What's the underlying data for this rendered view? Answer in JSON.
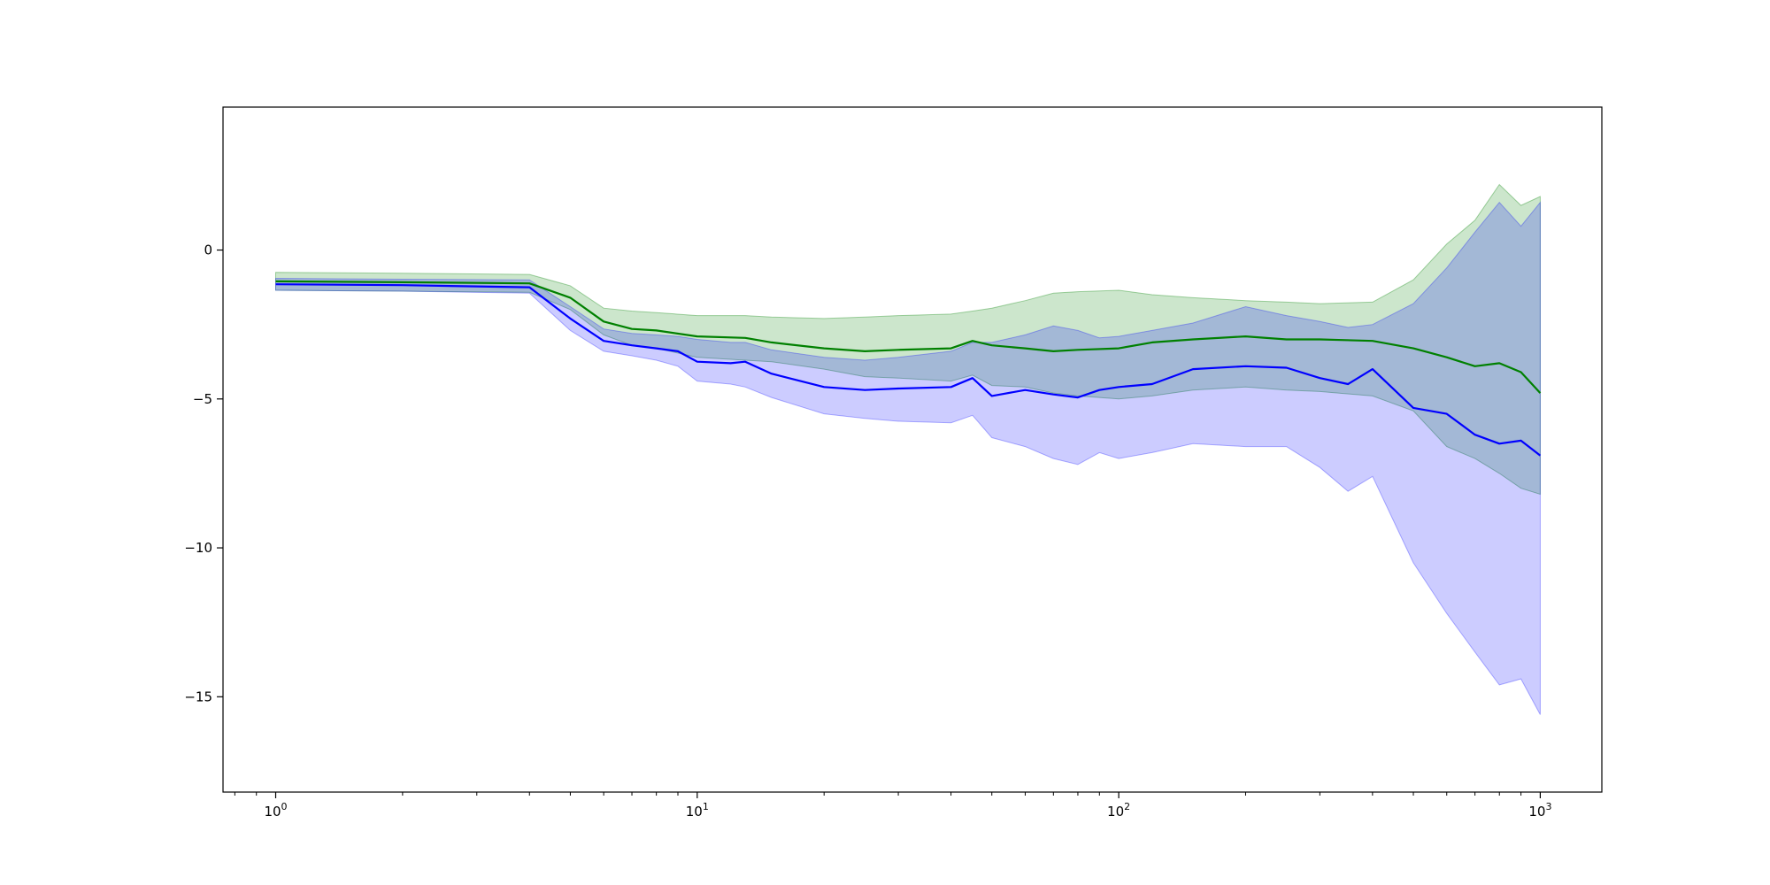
{
  "chart_data": {
    "type": "line",
    "xscale": "log",
    "xlim": [
      0.75,
      1400
    ],
    "ylim": [
      -18.2,
      4.8
    ],
    "x_ticks": [
      1,
      10,
      100,
      1000
    ],
    "x_tick_labels": [
      {
        "base": "10",
        "exp": "0"
      },
      {
        "base": "10",
        "exp": "1"
      },
      {
        "base": "10",
        "exp": "2"
      },
      {
        "base": "10",
        "exp": "3"
      }
    ],
    "y_ticks": [
      0,
      -5,
      -10,
      -15
    ],
    "y_tick_labels": [
      "0",
      "−5",
      "−10",
      "−15"
    ],
    "grid": false,
    "legend": null,
    "series": [
      {
        "color": "#008000",
        "band_color": "rgba(0,128,0,0.2)",
        "band_edge_color": "rgba(0,128,0,0.35)",
        "x": [
          1,
          2,
          4,
          5,
          6,
          7,
          8,
          10,
          13,
          15,
          20,
          25,
          30,
          40,
          45,
          50,
          60,
          70,
          80,
          100,
          120,
          150,
          200,
          250,
          300,
          400,
          500,
          600,
          700,
          800,
          900,
          1000
        ],
        "mean": [
          -1.05,
          -1.08,
          -1.12,
          -1.6,
          -2.4,
          -2.65,
          -2.7,
          -2.9,
          -2.95,
          -3.1,
          -3.3,
          -3.4,
          -3.35,
          -3.3,
          -3.05,
          -3.2,
          -3.3,
          -3.4,
          -3.35,
          -3.3,
          -3.1,
          -3.0,
          -2.9,
          -3.0,
          -3.0,
          -3.05,
          -3.3,
          -3.6,
          -3.9,
          -3.8,
          -4.1,
          -4.8
        ],
        "upper": [
          -0.75,
          -0.78,
          -0.82,
          -1.2,
          -1.95,
          -2.05,
          -2.1,
          -2.2,
          -2.2,
          -2.25,
          -2.3,
          -2.25,
          -2.2,
          -2.15,
          -2.05,
          -1.95,
          -1.7,
          -1.45,
          -1.4,
          -1.35,
          -1.5,
          -1.6,
          -1.7,
          -1.75,
          -1.8,
          -1.75,
          -1.0,
          0.2,
          1.0,
          2.2,
          1.5,
          1.8
        ],
        "lower": [
          -1.35,
          -1.38,
          -1.42,
          -2.0,
          -2.85,
          -3.2,
          -3.3,
          -3.6,
          -3.7,
          -3.75,
          -4.0,
          -4.25,
          -4.3,
          -4.4,
          -4.2,
          -4.55,
          -4.6,
          -4.8,
          -4.9,
          -5.0,
          -4.9,
          -4.7,
          -4.6,
          -4.7,
          -4.75,
          -4.9,
          -5.4,
          -6.6,
          -7.0,
          -7.5,
          -8.0,
          -8.2
        ]
      },
      {
        "color": "#0000ff",
        "band_color": "rgba(0,0,255,0.2)",
        "band_edge_color": "rgba(0,0,255,0.3)",
        "x": [
          1,
          2,
          4,
          5,
          6,
          7,
          8,
          9,
          10,
          12,
          13,
          15,
          20,
          25,
          30,
          40,
          45,
          50,
          60,
          70,
          80,
          90,
          100,
          120,
          150,
          200,
          250,
          300,
          350,
          400,
          500,
          600,
          700,
          800,
          900,
          1000
        ],
        "mean": [
          -1.15,
          -1.18,
          -1.25,
          -2.3,
          -3.05,
          -3.2,
          -3.3,
          -3.4,
          -3.75,
          -3.8,
          -3.75,
          -4.15,
          -4.6,
          -4.7,
          -4.65,
          -4.6,
          -4.3,
          -4.9,
          -4.7,
          -4.85,
          -4.95,
          -4.7,
          -4.6,
          -4.5,
          -4.0,
          -3.9,
          -3.95,
          -4.3,
          -4.5,
          -4.0,
          -5.3,
          -5.5,
          -6.2,
          -6.5,
          -6.4,
          -6.9
        ],
        "upper": [
          -0.95,
          -0.98,
          -1.0,
          -1.9,
          -2.65,
          -2.8,
          -2.85,
          -2.9,
          -3.0,
          -3.1,
          -3.1,
          -3.35,
          -3.6,
          -3.7,
          -3.6,
          -3.4,
          -3.1,
          -3.1,
          -2.85,
          -2.55,
          -2.7,
          -2.95,
          -2.9,
          -2.7,
          -2.45,
          -1.9,
          -2.2,
          -2.4,
          -2.6,
          -2.5,
          -1.8,
          -0.6,
          0.6,
          1.6,
          0.8,
          1.6
        ],
        "lower": [
          -1.35,
          -1.38,
          -1.45,
          -2.7,
          -3.4,
          -3.55,
          -3.7,
          -3.9,
          -4.4,
          -4.5,
          -4.6,
          -4.95,
          -5.5,
          -5.65,
          -5.75,
          -5.8,
          -5.55,
          -6.3,
          -6.6,
          -7.0,
          -7.2,
          -6.8,
          -7.0,
          -6.8,
          -6.5,
          -6.6,
          -6.6,
          -7.3,
          -8.1,
          -7.6,
          -10.5,
          -12.2,
          -13.5,
          -14.6,
          -14.4,
          -15.6
        ]
      }
    ]
  }
}
